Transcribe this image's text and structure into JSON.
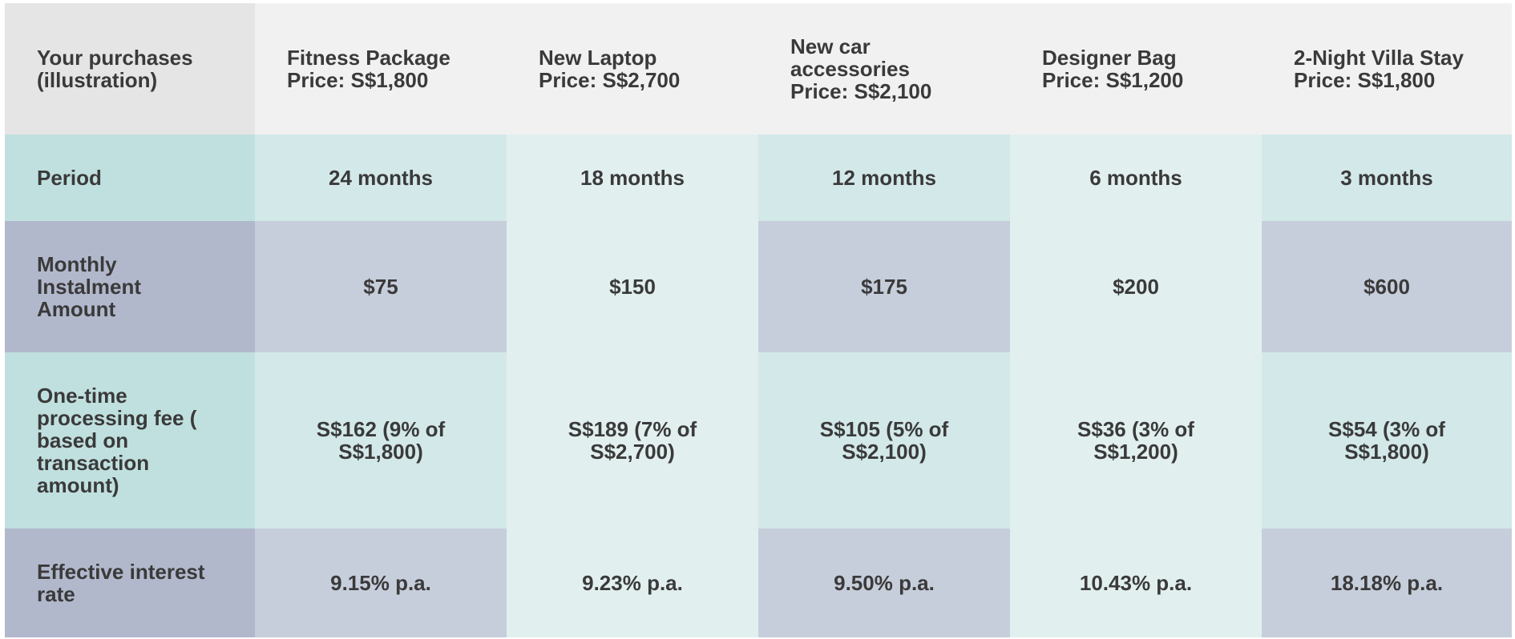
{
  "header": {
    "corner": "Your purchases\n(illustration)",
    "columns": [
      "Fitness Package\nPrice: S$1,800",
      "New Laptop\nPrice: S$2,700",
      "New car\naccessories\nPrice: S$2,100",
      "Designer Bag\nPrice: S$1,200",
      "2-Night Villa Stay\nPrice: S$1,800"
    ]
  },
  "rows": [
    {
      "label": "Period",
      "values": [
        "24 months",
        "18 months",
        "12 months",
        "6 months",
        "3 months"
      ]
    },
    {
      "label": "Monthly\nInstalment\nAmount",
      "values": [
        "$75",
        "$150",
        "$175",
        "$200",
        "$600"
      ]
    },
    {
      "label": "One-time\nprocessing fee (\nbased on\ntransaction\namount)",
      "values": [
        "S$162 (9% of\nS$1,800)",
        "S$189 (7% of\nS$2,700)",
        "S$105 (5% of\nS$2,100)",
        "S$36 (3% of\nS$1,200)",
        "S$54 (3% of\nS$1,800)"
      ]
    },
    {
      "label": "Effective interest\nrate",
      "values": [
        "9.15% p.a.",
        "9.23% p.a.",
        "9.50% p.a.",
        "10.43% p.a.",
        "18.18% p.a."
      ]
    }
  ],
  "colors": {
    "header_bg": "#f1f1f1",
    "header_label_bg": "#e5e5e5",
    "teal_bg": "#d3e8e9",
    "teal_label_bg": "#c0e0df",
    "blue_bg": "#c7cedb",
    "blue_label_bg": "#b2b8cc",
    "alt_column_bg": "#e2efef",
    "text": "#3a3a3a"
  }
}
